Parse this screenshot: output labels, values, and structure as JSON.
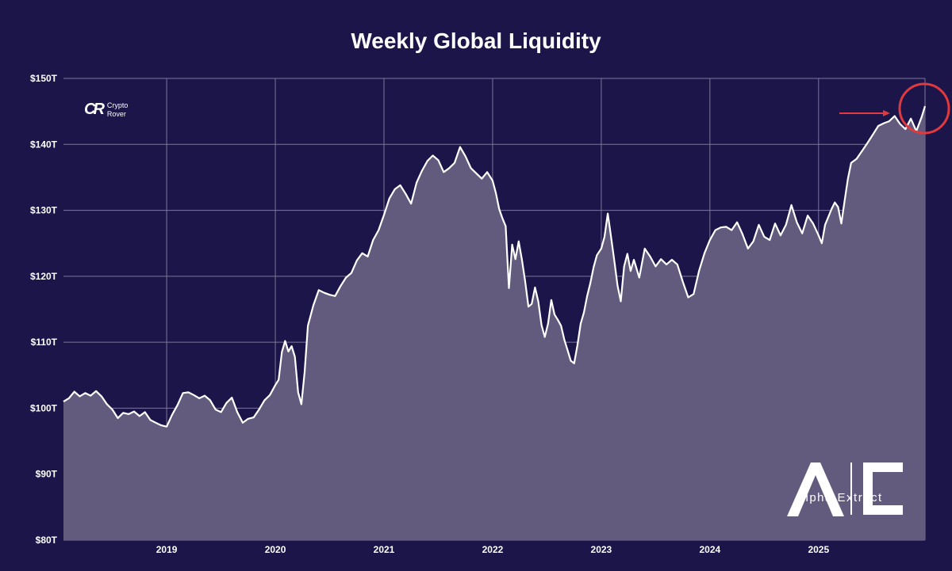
{
  "chart_data": {
    "type": "area",
    "title": "Weekly Global Liquidity",
    "xlabel": "",
    "ylabel": "",
    "ylim": [
      80,
      150
    ],
    "y_unit": "trillion USD",
    "xlim": [
      2018.05,
      2025.98
    ],
    "x_ticks": [
      {
        "value": 2019,
        "label": "2019"
      },
      {
        "value": 2020,
        "label": "2020"
      },
      {
        "value": 2021,
        "label": "2021"
      },
      {
        "value": 2022,
        "label": "2022"
      },
      {
        "value": 2023,
        "label": "2023"
      },
      {
        "value": 2024,
        "label": "2024"
      },
      {
        "value": 2025,
        "label": "2025"
      }
    ],
    "y_ticks": [
      {
        "value": 80,
        "label": "$80T"
      },
      {
        "value": 90,
        "label": "$90T"
      },
      {
        "value": 100,
        "label": "$100T"
      },
      {
        "value": 110,
        "label": "$110T"
      },
      {
        "value": 120,
        "label": "$120T"
      },
      {
        "value": 130,
        "label": "$130T"
      },
      {
        "value": 140,
        "label": "$140T"
      },
      {
        "value": 150,
        "label": "$150T"
      }
    ],
    "grid": true,
    "series": [
      {
        "name": "Weekly Global Liquidity",
        "points": [
          [
            2018.05,
            101.0
          ],
          [
            2018.1,
            101.5
          ],
          [
            2018.15,
            102.5
          ],
          [
            2018.2,
            101.8
          ],
          [
            2018.25,
            102.3
          ],
          [
            2018.3,
            101.9
          ],
          [
            2018.35,
            102.6
          ],
          [
            2018.4,
            101.8
          ],
          [
            2018.45,
            100.6
          ],
          [
            2018.5,
            99.8
          ],
          [
            2018.55,
            98.5
          ],
          [
            2018.6,
            99.3
          ],
          [
            2018.65,
            99.1
          ],
          [
            2018.7,
            99.5
          ],
          [
            2018.75,
            98.8
          ],
          [
            2018.8,
            99.4
          ],
          [
            2018.85,
            98.2
          ],
          [
            2018.9,
            97.8
          ],
          [
            2018.95,
            97.4
          ],
          [
            2019.0,
            97.2
          ],
          [
            2019.05,
            99.0
          ],
          [
            2019.1,
            100.5
          ],
          [
            2019.15,
            102.3
          ],
          [
            2019.2,
            102.4
          ],
          [
            2019.25,
            102.0
          ],
          [
            2019.3,
            101.5
          ],
          [
            2019.35,
            101.9
          ],
          [
            2019.4,
            101.2
          ],
          [
            2019.45,
            99.8
          ],
          [
            2019.5,
            99.4
          ],
          [
            2019.55,
            100.8
          ],
          [
            2019.6,
            101.6
          ],
          [
            2019.65,
            99.4
          ],
          [
            2019.7,
            97.8
          ],
          [
            2019.75,
            98.4
          ],
          [
            2019.8,
            98.6
          ],
          [
            2019.85,
            99.8
          ],
          [
            2019.9,
            101.2
          ],
          [
            2019.95,
            102.0
          ],
          [
            2020.0,
            103.5
          ],
          [
            2020.03,
            104.3
          ],
          [
            2020.06,
            108.5
          ],
          [
            2020.09,
            110.2
          ],
          [
            2020.12,
            108.6
          ],
          [
            2020.15,
            109.4
          ],
          [
            2020.18,
            107.8
          ],
          [
            2020.21,
            102.4
          ],
          [
            2020.24,
            100.6
          ],
          [
            2020.27,
            105.5
          ],
          [
            2020.3,
            112.5
          ],
          [
            2020.35,
            115.6
          ],
          [
            2020.4,
            117.9
          ],
          [
            2020.45,
            117.5
          ],
          [
            2020.5,
            117.2
          ],
          [
            2020.55,
            117.0
          ],
          [
            2020.6,
            118.5
          ],
          [
            2020.65,
            119.8
          ],
          [
            2020.7,
            120.5
          ],
          [
            2020.75,
            122.4
          ],
          [
            2020.8,
            123.5
          ],
          [
            2020.85,
            123.0
          ],
          [
            2020.9,
            125.5
          ],
          [
            2020.95,
            127.0
          ],
          [
            2021.0,
            129.3
          ],
          [
            2021.05,
            131.8
          ],
          [
            2021.1,
            133.2
          ],
          [
            2021.15,
            133.8
          ],
          [
            2021.2,
            132.5
          ],
          [
            2021.25,
            131.0
          ],
          [
            2021.3,
            134.2
          ],
          [
            2021.35,
            136.0
          ],
          [
            2021.4,
            137.5
          ],
          [
            2021.45,
            138.3
          ],
          [
            2021.5,
            137.6
          ],
          [
            2021.55,
            135.8
          ],
          [
            2021.6,
            136.4
          ],
          [
            2021.65,
            137.2
          ],
          [
            2021.7,
            139.6
          ],
          [
            2021.75,
            138.2
          ],
          [
            2021.8,
            136.4
          ],
          [
            2021.85,
            135.6
          ],
          [
            2021.9,
            134.8
          ],
          [
            2021.95,
            135.8
          ],
          [
            2022.0,
            134.5
          ],
          [
            2022.03,
            132.6
          ],
          [
            2022.06,
            130.2
          ],
          [
            2022.09,
            128.8
          ],
          [
            2022.12,
            127.6
          ],
          [
            2022.15,
            118.2
          ],
          [
            2022.18,
            124.8
          ],
          [
            2022.21,
            122.6
          ],
          [
            2022.24,
            125.3
          ],
          [
            2022.27,
            122.5
          ],
          [
            2022.3,
            119.2
          ],
          [
            2022.33,
            115.4
          ],
          [
            2022.36,
            115.8
          ],
          [
            2022.39,
            118.3
          ],
          [
            2022.42,
            116.2
          ],
          [
            2022.45,
            112.6
          ],
          [
            2022.48,
            110.8
          ],
          [
            2022.51,
            112.8
          ],
          [
            2022.54,
            116.4
          ],
          [
            2022.57,
            114.2
          ],
          [
            2022.6,
            113.4
          ],
          [
            2022.63,
            112.5
          ],
          [
            2022.66,
            110.4
          ],
          [
            2022.69,
            108.8
          ],
          [
            2022.72,
            107.2
          ],
          [
            2022.75,
            106.8
          ],
          [
            2022.78,
            109.5
          ],
          [
            2022.81,
            112.8
          ],
          [
            2022.84,
            114.5
          ],
          [
            2022.87,
            117.0
          ],
          [
            2022.9,
            119.0
          ],
          [
            2022.93,
            121.4
          ],
          [
            2022.96,
            123.2
          ],
          [
            2023.0,
            124.2
          ],
          [
            2023.03,
            126.0
          ],
          [
            2023.06,
            129.5
          ],
          [
            2023.09,
            126.0
          ],
          [
            2023.12,
            122.4
          ],
          [
            2023.15,
            118.6
          ],
          [
            2023.18,
            116.2
          ],
          [
            2023.21,
            121.5
          ],
          [
            2023.24,
            123.4
          ],
          [
            2023.27,
            120.8
          ],
          [
            2023.3,
            122.5
          ],
          [
            2023.35,
            119.8
          ],
          [
            2023.4,
            124.2
          ],
          [
            2023.45,
            123.0
          ],
          [
            2023.5,
            121.5
          ],
          [
            2023.55,
            122.6
          ],
          [
            2023.6,
            121.8
          ],
          [
            2023.65,
            122.5
          ],
          [
            2023.7,
            121.8
          ],
          [
            2023.75,
            119.2
          ],
          [
            2023.8,
            116.8
          ],
          [
            2023.85,
            117.3
          ],
          [
            2023.9,
            120.8
          ],
          [
            2023.95,
            123.5
          ],
          [
            2024.0,
            125.5
          ],
          [
            2024.05,
            127.0
          ],
          [
            2024.1,
            127.4
          ],
          [
            2024.15,
            127.5
          ],
          [
            2024.2,
            127.0
          ],
          [
            2024.25,
            128.2
          ],
          [
            2024.3,
            126.4
          ],
          [
            2024.35,
            124.2
          ],
          [
            2024.4,
            125.3
          ],
          [
            2024.45,
            127.8
          ],
          [
            2024.5,
            126.0
          ],
          [
            2024.55,
            125.5
          ],
          [
            2024.6,
            128.0
          ],
          [
            2024.65,
            126.2
          ],
          [
            2024.7,
            127.8
          ],
          [
            2024.75,
            130.8
          ],
          [
            2024.8,
            128.2
          ],
          [
            2024.85,
            126.5
          ],
          [
            2024.9,
            129.2
          ],
          [
            2024.95,
            128.0
          ],
          [
            2025.0,
            126.2
          ],
          [
            2025.03,
            125.0
          ],
          [
            2025.06,
            127.8
          ],
          [
            2025.09,
            129.0
          ],
          [
            2025.12,
            130.2
          ],
          [
            2025.15,
            131.2
          ],
          [
            2025.18,
            130.5
          ],
          [
            2025.21,
            128.0
          ],
          [
            2025.24,
            131.5
          ],
          [
            2025.27,
            134.8
          ],
          [
            2025.3,
            137.2
          ],
          [
            2025.35,
            137.8
          ],
          [
            2025.4,
            139.0
          ],
          [
            2025.45,
            140.2
          ],
          [
            2025.5,
            141.5
          ],
          [
            2025.55,
            142.8
          ],
          [
            2025.6,
            143.2
          ],
          [
            2025.65,
            143.5
          ],
          [
            2025.7,
            144.3
          ],
          [
            2025.75,
            143.1
          ],
          [
            2025.8,
            142.3
          ],
          [
            2025.85,
            143.9
          ],
          [
            2025.9,
            142.0
          ],
          [
            2025.95,
            144.2
          ],
          [
            2025.98,
            145.8
          ]
        ]
      }
    ],
    "annotations": [
      {
        "type": "arrow",
        "points_to": "latest value",
        "color": "#e0393e"
      },
      {
        "type": "circle",
        "highlights": "latest value",
        "color": "#e0393e"
      }
    ]
  },
  "colors": {
    "background": "#1c1549",
    "area_fill": "#625b7d",
    "line": "#ffffff",
    "grid": "#7c7797",
    "annotation": "#e0393e"
  },
  "watermarks": {
    "crypto_rover": {
      "mark": "CR",
      "line1": "Crypto",
      "line2": "Rover"
    },
    "alpha_extract": {
      "letters": "A|E",
      "caption": "Alpha Extract"
    }
  }
}
